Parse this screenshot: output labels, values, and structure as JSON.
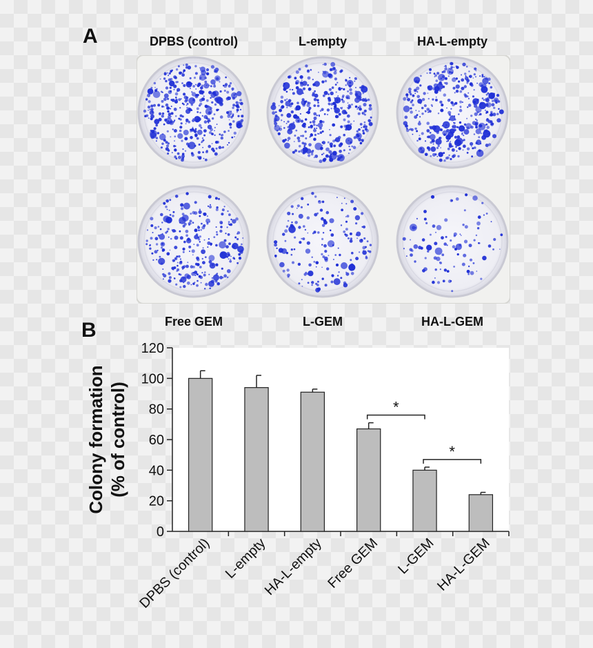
{
  "figure": {
    "panel_a_letter": "A",
    "panel_b_letter": "B",
    "plate_top_labels": [
      "DPBS (control)",
      "L-empty",
      "HA-L-empty"
    ],
    "plate_bottom_labels": [
      "Free GEM",
      "L-GEM",
      "HA-L-GEM"
    ],
    "colony_stain_color": "#1f2fd6",
    "colony_density": [
      1.0,
      0.94,
      0.91,
      0.67,
      0.4,
      0.24
    ]
  },
  "chart_data": {
    "type": "bar",
    "categories": [
      "DPBS (control)",
      "L-empty",
      "HA-L-empty",
      "Free GEM",
      "L-GEM",
      "HA-L-GEM"
    ],
    "values": [
      100,
      94,
      91,
      67,
      40,
      24
    ],
    "errors": [
      5,
      8,
      2,
      4,
      2,
      1.5
    ],
    "ylabel_line1": "Colony formation",
    "ylabel_line2": "(% of control)",
    "xlabel": "",
    "ylim": [
      0,
      120
    ],
    "yticks": [
      "0",
      "20",
      "40",
      "60",
      "80",
      "100",
      "120"
    ],
    "bar_color": "#bdbdbd",
    "significance": [
      {
        "from": "Free GEM",
        "to": "L-GEM",
        "label": "*"
      },
      {
        "from": "L-GEM",
        "to": "HA-L-GEM",
        "label": "*"
      }
    ],
    "grid": false,
    "legend": "none"
  }
}
